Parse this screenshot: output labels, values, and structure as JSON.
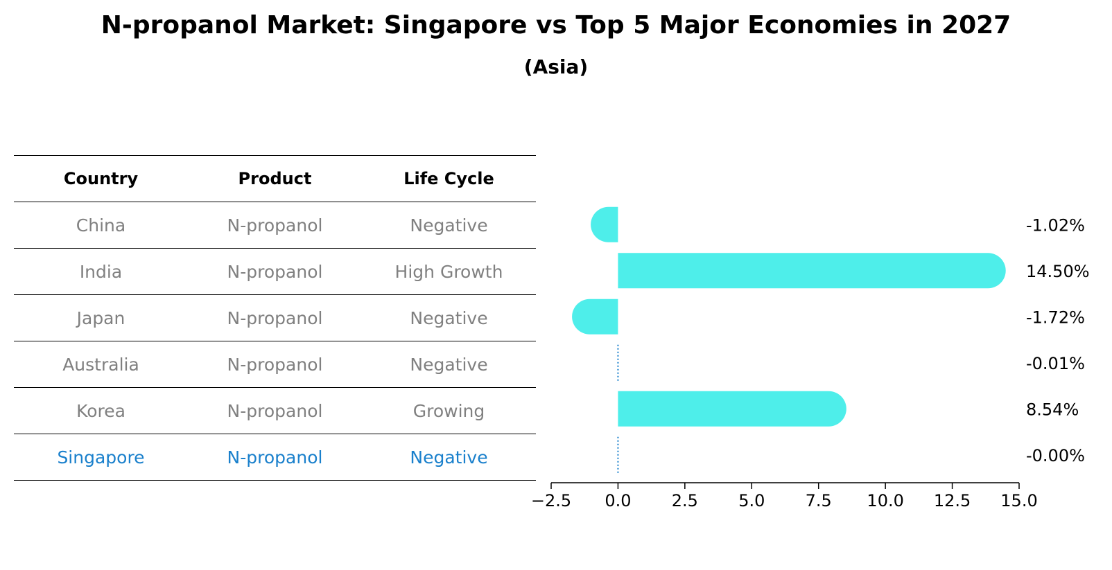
{
  "title": "N-propanol Market: Singapore vs Top 5 Major Economies in 2027",
  "subtitle": "(Asia)",
  "table": {
    "headers": [
      "Country",
      "Product",
      "Life Cycle"
    ],
    "rows": [
      {
        "country": "China",
        "product": "N-propanol",
        "life_cycle": "Negative",
        "highlight": false
      },
      {
        "country": "India",
        "product": "N-propanol",
        "life_cycle": "High Growth",
        "highlight": false
      },
      {
        "country": "Japan",
        "product": "N-propanol",
        "life_cycle": "Negative",
        "highlight": false
      },
      {
        "country": "Australia",
        "product": "N-propanol",
        "life_cycle": "Negative",
        "highlight": false
      },
      {
        "country": "Korea",
        "product": "N-propanol",
        "life_cycle": "Growing",
        "highlight": false
      },
      {
        "country": "Singapore",
        "product": "N-propanol",
        "life_cycle": "Negative",
        "highlight": true
      }
    ]
  },
  "chart_data": {
    "type": "bar",
    "orientation": "horizontal",
    "categories": [
      "China",
      "India",
      "Japan",
      "Australia",
      "Korea",
      "Singapore"
    ],
    "values": [
      -1.02,
      14.5,
      -1.72,
      -0.01,
      8.54,
      -0.0
    ],
    "value_labels": [
      "-1.02%",
      "14.50%",
      "-1.72%",
      "-0.01%",
      "8.54%",
      "-0.00%"
    ],
    "xlim": [
      -2.5,
      15.0
    ],
    "xticks": [
      -2.5,
      0.0,
      2.5,
      5.0,
      7.5,
      10.0,
      12.5,
      15.0
    ],
    "xtick_labels": [
      "−2.5",
      "0.0",
      "2.5",
      "5.0",
      "7.5",
      "10.0",
      "12.5",
      "15.0"
    ],
    "xlabel": "",
    "ylabel": "",
    "grid": false,
    "colors": {
      "bar": "#4eeeea",
      "highlight": "#1a80cc",
      "label_text": "#000000"
    }
  }
}
